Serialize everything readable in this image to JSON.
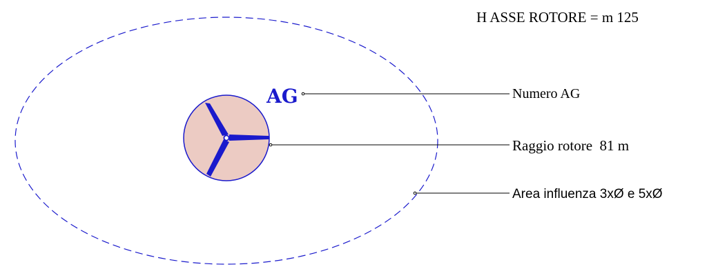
{
  "header": {
    "hub_height": "H ASSE ROTORE = m 125"
  },
  "turbine": {
    "id_label": "AG"
  },
  "legend": {
    "turbine_number": "Numero AG",
    "rotor_radius": "Raggio rotore  81 m",
    "influence_area": "Area influenza 3xØ e 5xØ"
  },
  "colors": {
    "accent": "#1a1acc",
    "rotor_fill": "#eccbc3",
    "line": "#000000",
    "background": "#ffffff"
  },
  "icons": {
    "rotor": "wind-turbine-rotor-icon"
  }
}
